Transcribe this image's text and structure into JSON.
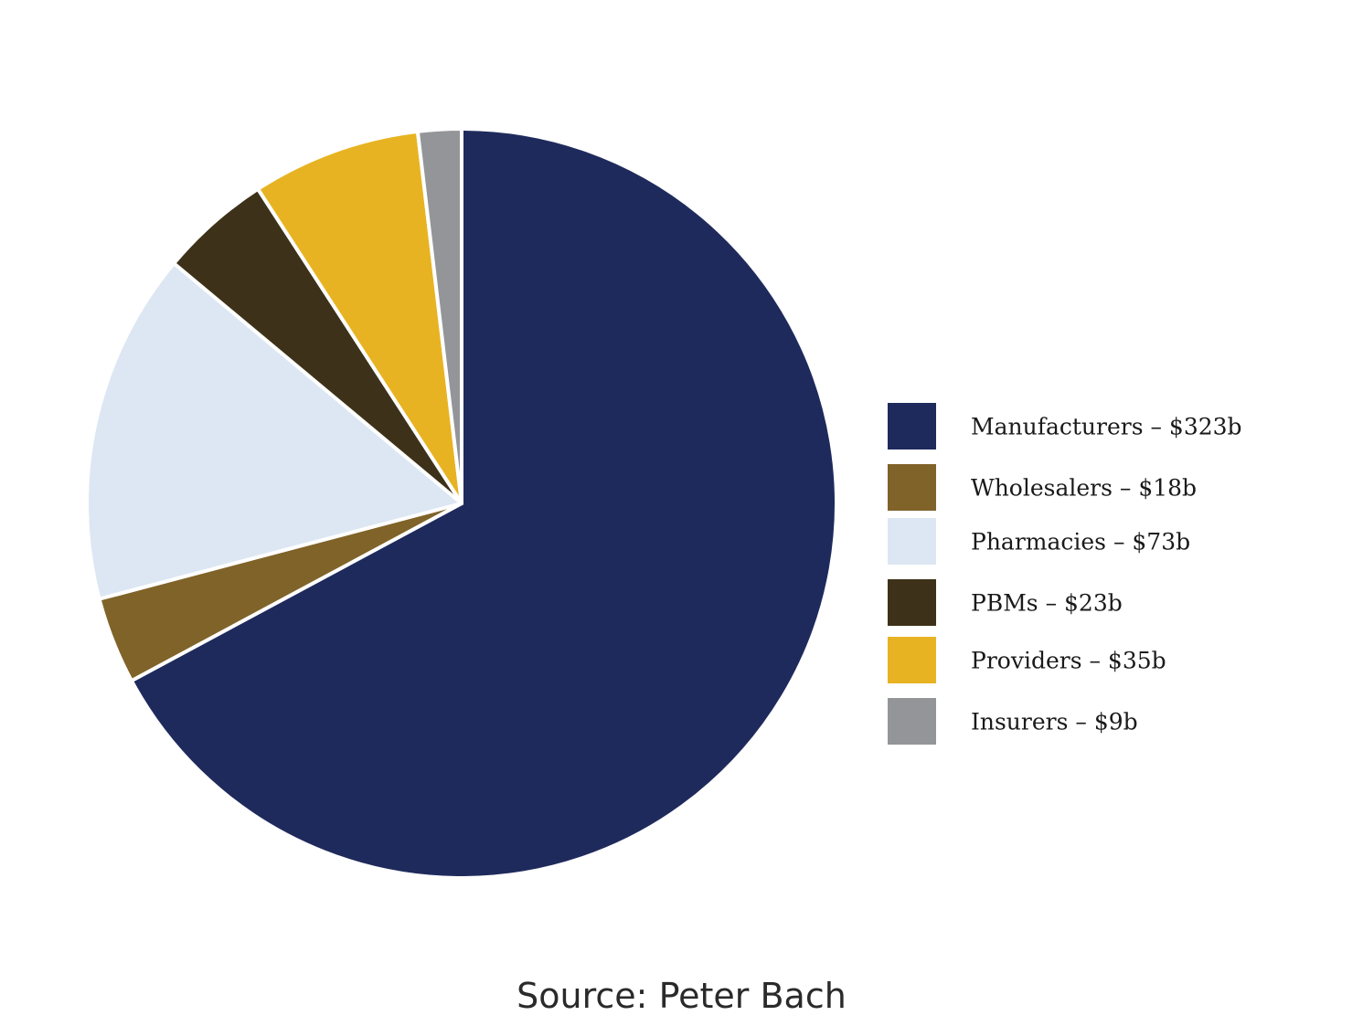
{
  "chart_data": {
    "type": "pie",
    "categories": [
      "Manufacturers",
      "Wholesalers",
      "Pharmacies",
      "PBMs",
      "Providers",
      "Insurers"
    ],
    "values": [
      323,
      18,
      73,
      23,
      35,
      9
    ],
    "unit": "$b",
    "colors": [
      "#1f2a5c",
      "#806329",
      "#dde7f3",
      "#3d3219",
      "#e8b322",
      "#939598"
    ],
    "legend": {
      "placement": "right",
      "entries": [
        "Manufacturers – $323b",
        "Wholesalers – $18b",
        "Pharmacies – $73b",
        "PBMs – $23b",
        "Providers – $35b",
        "Insurers – $9b"
      ]
    },
    "start_angle": "12 o'clock",
    "direction": "clockwise"
  },
  "source": "Source: Peter Bach"
}
